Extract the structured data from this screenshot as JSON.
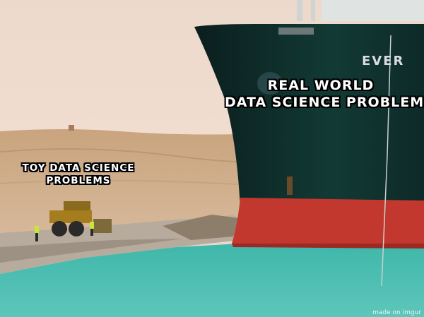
{
  "captions": {
    "big": [
      "REAL WORLD",
      "DATA SCIENCE PROBLEMS"
    ],
    "small": [
      "TOY DATA SCIENCE",
      "PROBLEMS"
    ]
  },
  "hull_text": "EVER",
  "watermark": "made on imgur"
}
